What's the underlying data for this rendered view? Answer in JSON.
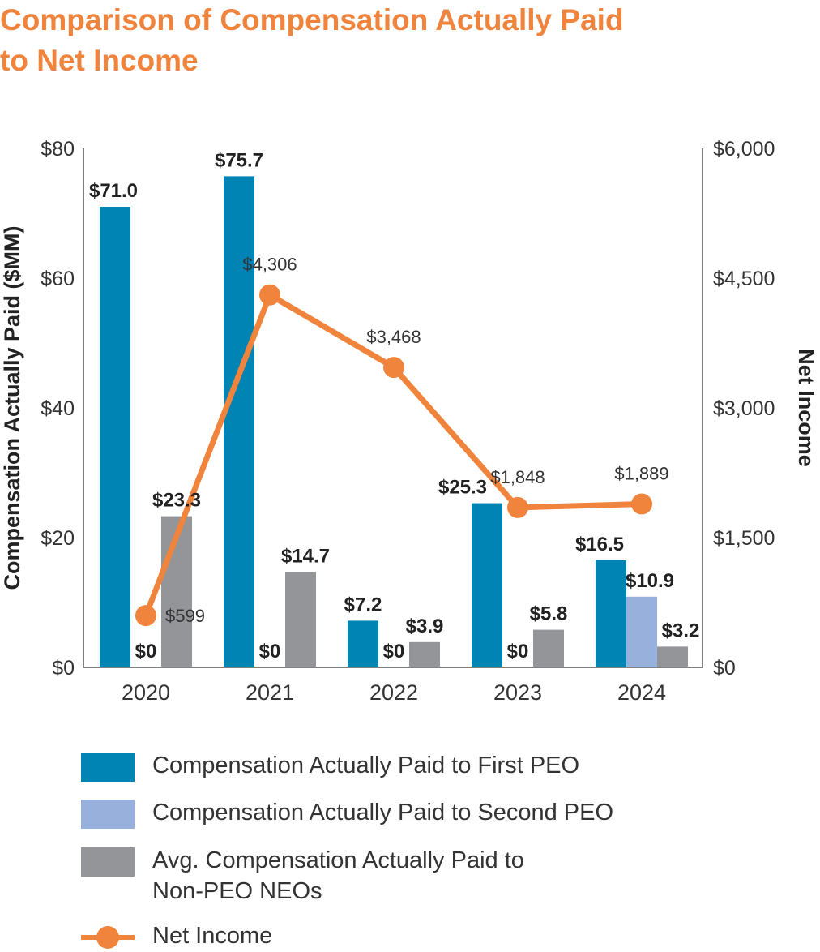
{
  "title_lines": [
    "Comparison of Compensation Actually Paid",
    "to Net Income"
  ],
  "chart_data": {
    "type": "bar+line",
    "categories": [
      "2020",
      "2021",
      "2022",
      "2023",
      "2024"
    ],
    "ylabel_left": "Compensation Actually Paid ($MM)",
    "ylabel_right": "Net Income",
    "ylim_left": [
      0,
      80
    ],
    "ylim_right": [
      0,
      6000
    ],
    "yticks_left": [
      {
        "value": 0,
        "label": "$0"
      },
      {
        "value": 20,
        "label": "$20"
      },
      {
        "value": 40,
        "label": "$40"
      },
      {
        "value": 60,
        "label": "$60"
      },
      {
        "value": 80,
        "label": "$80"
      }
    ],
    "yticks_right": [
      {
        "value": 0,
        "label": "$0"
      },
      {
        "value": 1500,
        "label": "$1,500"
      },
      {
        "value": 3000,
        "label": "$3,000"
      },
      {
        "value": 4500,
        "label": "$4,500"
      },
      {
        "value": 6000,
        "label": "$6,000"
      }
    ],
    "series": [
      {
        "name": "Compensation Actually Paid to First PEO",
        "kind": "bar",
        "color": "#0084b4",
        "values": [
          71.0,
          75.7,
          7.2,
          25.3,
          16.5
        ],
        "labels": [
          "$71.0",
          "$75.7",
          "$7.2",
          "$25.3",
          "$16.5"
        ]
      },
      {
        "name": "Compensation Actually Paid to Second PEO",
        "kind": "bar",
        "color": "#98b0dc",
        "values": [
          0,
          0,
          0,
          0,
          10.9
        ],
        "labels": [
          "$0",
          "$0",
          "$0",
          "$0",
          "$10.9"
        ]
      },
      {
        "name": "Avg. Compensation Actually Paid to Non-PEO NEOs",
        "kind": "bar",
        "color": "#939598",
        "values": [
          23.3,
          14.7,
          3.9,
          5.8,
          3.2
        ],
        "labels": [
          "$23.3",
          "$14.7",
          "$3.9",
          "$5.8",
          "$3.2"
        ]
      },
      {
        "name": "Net Income",
        "kind": "line",
        "axis": "right",
        "color": "#f0843c",
        "values": [
          599,
          4306,
          3468,
          1848,
          1889
        ],
        "labels": [
          "$599",
          "$4,306",
          "$3,468",
          "$1,848",
          "$1,889"
        ]
      }
    ]
  },
  "legend": [
    {
      "kind": "bar",
      "color": "#0084b4",
      "lines": [
        "Compensation Actually Paid to First PEO"
      ]
    },
    {
      "kind": "bar",
      "color": "#98b0dc",
      "lines": [
        "Compensation Actually Paid to Second PEO"
      ]
    },
    {
      "kind": "bar",
      "color": "#939598",
      "lines": [
        "Avg. Compensation Actually Paid to",
        "Non-PEO NEOs"
      ]
    },
    {
      "kind": "line",
      "color": "#f0843c",
      "lines": [
        "Net Income"
      ]
    }
  ]
}
